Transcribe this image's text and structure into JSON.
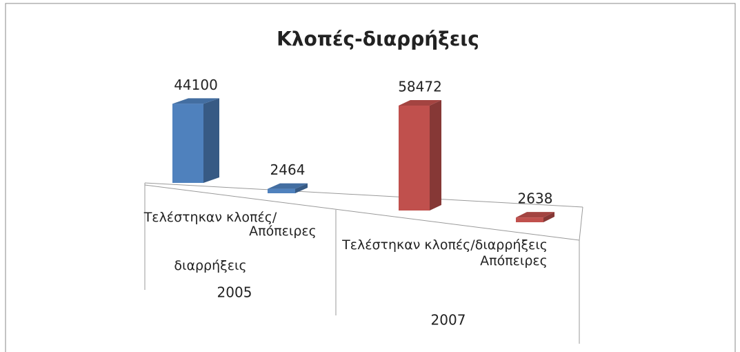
{
  "chart_data": {
    "type": "bar",
    "title": "Κλοπές-διαρρήξεις",
    "groups": [
      {
        "label": "2005",
        "color": "#4f81bd",
        "categories": [
          "Τελέστηκαν κλοπές/διαρρήξεις",
          "Απόπειρες"
        ],
        "values": [
          44100,
          2464
        ]
      },
      {
        "label": "2007",
        "color": "#c0504d",
        "categories": [
          "Τελέστηκαν κλοπές/διαρρήξεις",
          "Απόπειρες"
        ],
        "values": [
          58472,
          2638
        ]
      }
    ]
  }
}
